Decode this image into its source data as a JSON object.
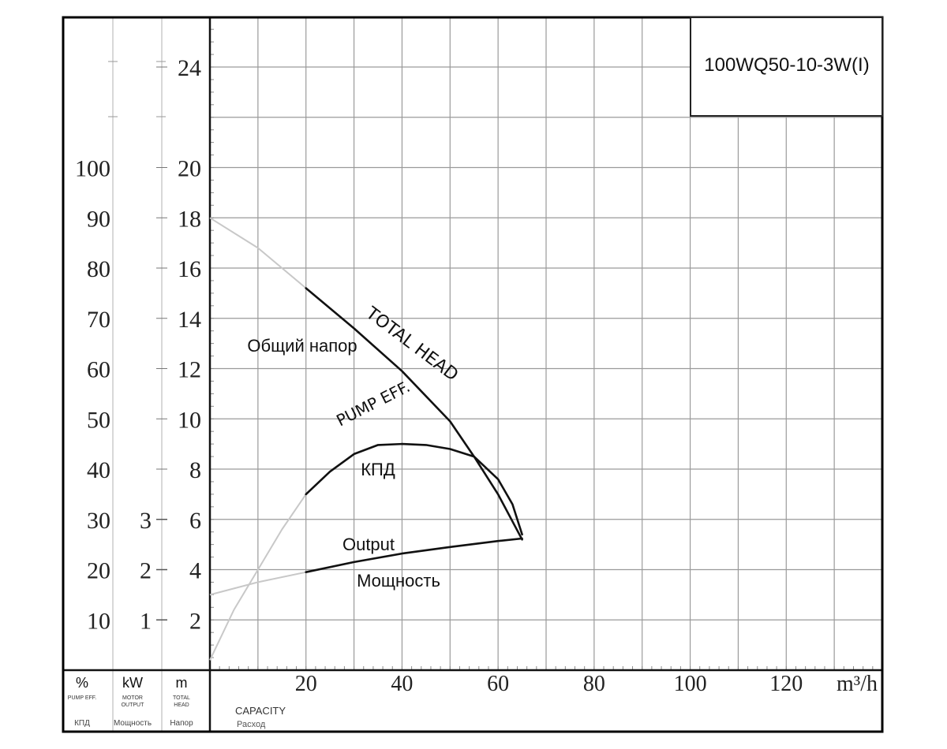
{
  "chart_data": {
    "type": "line",
    "title": "100WQ50-10-3W(I)",
    "x_axis": {
      "ticks": [
        20,
        40,
        60,
        80,
        100,
        120
      ],
      "tick_labels": [
        "20",
        "40",
        "60",
        "80",
        "100",
        "120"
      ],
      "unit": "m³/h",
      "label": "CAPACITY",
      "label_ru": "Расход",
      "range": [
        0,
        140
      ]
    },
    "y_axes": [
      {
        "id": "eff",
        "unit": "%",
        "label": "PUMP EFF.",
        "label_ru": "КПД",
        "ticks": [
          10,
          20,
          30,
          40,
          50,
          60,
          70,
          80,
          90,
          100
        ],
        "range": [
          0,
          130
        ]
      },
      {
        "id": "power",
        "unit": "kW",
        "label": "MOTOR OUTPUT",
        "label_ru": "Мощность",
        "ticks": [
          1,
          2,
          3
        ],
        "range": [
          0,
          13
        ]
      },
      {
        "id": "head",
        "unit": "m",
        "label": "TOTAL HEAD",
        "label_ru": "Напор",
        "ticks": [
          2,
          4,
          6,
          8,
          10,
          12,
          14,
          16,
          18,
          20,
          24
        ],
        "range": [
          0,
          26
        ]
      }
    ],
    "series": [
      {
        "name": "TOTAL HEAD",
        "name_ru": "Общий напор",
        "axis": "head",
        "x": [
          0,
          10,
          20,
          30,
          40,
          50,
          55,
          60,
          65
        ],
        "y": [
          18,
          16.8,
          15.2,
          13.6,
          11.9,
          9.9,
          8.5,
          7,
          5.2
        ],
        "style": "faint x<20, solid x>=20"
      },
      {
        "name": "PUMP EFF.",
        "name_ru": "КПД",
        "axis": "eff",
        "x": [
          0,
          5,
          10,
          15,
          20,
          25,
          30,
          35,
          40,
          45,
          50,
          55,
          60,
          63,
          65
        ],
        "y": [
          2,
          12,
          20,
          28,
          35,
          39.5,
          43,
          44.8,
          45,
          44.8,
          44,
          42.5,
          38,
          33,
          27
        ],
        "style": "faint x<20, solid x>=20"
      },
      {
        "name": "Output",
        "name_ru": "Мощность",
        "axis": "power",
        "x": [
          0,
          10,
          20,
          30,
          40,
          50,
          60,
          65
        ],
        "y": [
          1.5,
          1.75,
          1.95,
          2.15,
          2.32,
          2.45,
          2.57,
          2.62
        ],
        "style": "faint x<20, solid x>=20"
      }
    ],
    "curve_labels": [
      {
        "text": "TOTAL HEAD",
        "series": "TOTAL HEAD"
      },
      {
        "text": "Общий напор",
        "series": "TOTAL HEAD"
      },
      {
        "text": "PUMP EFF.",
        "series": "PUMP EFF."
      },
      {
        "text": "КПД",
        "series": "PUMP EFF."
      },
      {
        "text": "Output",
        "series": "Output"
      },
      {
        "text": "Мощность",
        "series": "Output"
      }
    ],
    "axis_header": {
      "eff_unit": "%",
      "eff_label_en": "PUMP EFF.",
      "eff_label_ru": "КПД",
      "power_unit": "kW",
      "power_label_en_1": "MOTOR",
      "power_label_en_2": "OUTPUT",
      "power_label_ru": "Мощность",
      "head_unit": "m",
      "head_label_en_1": "TOTAL",
      "head_label_en_2": "HEAD",
      "head_label_ru": "Напор"
    },
    "grid": true,
    "legend": "none"
  }
}
